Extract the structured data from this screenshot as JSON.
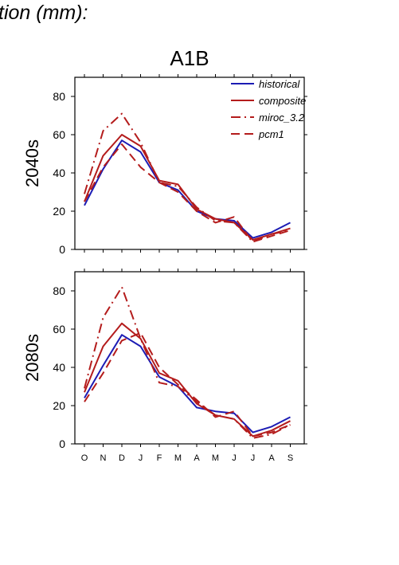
{
  "heading": "tion (mm):",
  "colors": {
    "historical": "#1c1cb4",
    "scenario": "#b41c1c",
    "axis": "#000000"
  },
  "chart_data": {
    "type": "line",
    "title": "A1B",
    "categories": [
      "O",
      "N",
      "D",
      "J",
      "F",
      "M",
      "A",
      "M",
      "J",
      "J",
      "A",
      "S"
    ],
    "ylim": [
      0,
      90
    ],
    "yticks": [
      0,
      20,
      40,
      60,
      80
    ],
    "legend": {
      "placement": "top-right",
      "entries": [
        {
          "name": "historical",
          "style": "solid",
          "color": "#1c1cb4"
        },
        {
          "name": "composite",
          "style": "solid",
          "color": "#b41c1c"
        },
        {
          "name": "miroc_3.2",
          "style": "dashdot",
          "color": "#b41c1c"
        },
        {
          "name": "pcm1",
          "style": "dashed",
          "color": "#b41c1c"
        }
      ]
    },
    "panels": [
      {
        "ylabel": "2040s",
        "series": [
          {
            "name": "historical",
            "values": [
              23,
              42,
              57,
              51,
              35,
              31,
              20,
              16,
              15,
              6,
              9,
              14
            ]
          },
          {
            "name": "composite",
            "values": [
              25,
              49,
              60,
              54,
              36,
              34,
              21,
              16,
              14,
              5,
              8,
              11
            ]
          },
          {
            "name": "miroc_3.2",
            "values": [
              29,
              62,
              71,
              56,
              35,
              33,
              22,
              15,
              14,
              4,
              8,
              10
            ]
          },
          {
            "name": "pcm1",
            "values": [
              25,
              43,
              55,
              43,
              35,
              30,
              20,
              14,
              17,
              4,
              7,
              10
            ]
          }
        ]
      },
      {
        "ylabel": "2080s",
        "series": [
          {
            "name": "historical",
            "values": [
              24,
              41,
              57,
              51,
              35,
              30,
              19,
              17,
              16,
              6,
              9,
              14
            ]
          },
          {
            "name": "composite",
            "values": [
              27,
              51,
              63,
              55,
              37,
              33,
              21,
              15,
              13,
              4,
              7,
              12
            ]
          },
          {
            "name": "miroc_3.2",
            "values": [
              29,
              66,
              82,
              55,
              32,
              30,
              22,
              15,
              13,
              3,
              5,
              10
            ]
          },
          {
            "name": "pcm1",
            "values": [
              22,
              37,
              54,
              58,
              40,
              31,
              23,
              14,
              17,
              4,
              6,
              10
            ]
          }
        ]
      }
    ]
  }
}
